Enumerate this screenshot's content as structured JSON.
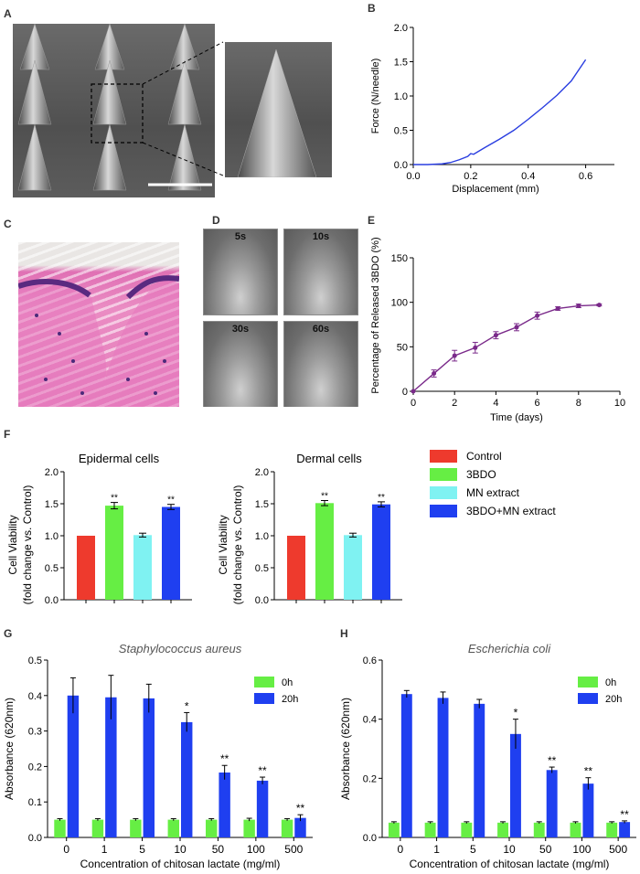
{
  "panels": {
    "A": "A",
    "B": "B",
    "C": "C",
    "D": "D",
    "E": "E",
    "F": "F",
    "G": "G",
    "H": "H"
  },
  "panel_D_labels": [
    "5s",
    "10s",
    "30s",
    "60s"
  ],
  "colors": {
    "control": "#ee3a2d",
    "bdo": "#66ee44",
    "mn": "#7ff2f2",
    "bdo_mn": "#1f3ff0",
    "line_b": "#2a3ee0",
    "line_e": "#7a2a8a",
    "h0": "#66ee44",
    "h20": "#1f3ff0"
  },
  "chart_data": [
    {
      "id": "B",
      "type": "line",
      "xlabel": "Displacement (mm)",
      "ylabel": "Force (N/needle)",
      "xlim": [
        0,
        0.7
      ],
      "ylim": [
        0,
        2.0
      ],
      "xticks": [
        "0.0",
        "0.2",
        "0.4",
        "0.6"
      ],
      "yticks": [
        "0.0",
        "0.5",
        "1.0",
        "1.5",
        "2.0"
      ],
      "series": [
        {
          "x": [
            0,
            0.05,
            0.1,
            0.13,
            0.16,
            0.19,
            0.2,
            0.21,
            0.25,
            0.3,
            0.35,
            0.4,
            0.45,
            0.5,
            0.55,
            0.6
          ],
          "y": [
            0,
            0.0,
            0.01,
            0.03,
            0.07,
            0.12,
            0.16,
            0.15,
            0.25,
            0.37,
            0.5,
            0.66,
            0.83,
            1.01,
            1.22,
            1.53
          ]
        }
      ]
    },
    {
      "id": "E",
      "type": "line",
      "xlabel": "Time (days)",
      "ylabel": "Percentage of Released 3BDO (%)",
      "xlim": [
        0,
        10
      ],
      "ylim": [
        0,
        150
      ],
      "xticks": [
        "0",
        "2",
        "4",
        "6",
        "8",
        "10"
      ],
      "yticks": [
        "0",
        "50",
        "100",
        "150"
      ],
      "series": [
        {
          "x": [
            0,
            1,
            2,
            3,
            4,
            5,
            6,
            7,
            8,
            9
          ],
          "y": [
            0,
            20,
            40,
            49,
            63,
            72,
            85,
            93,
            96,
            97
          ],
          "err": [
            0,
            4,
            6,
            6,
            4,
            4,
            4,
            2,
            2,
            1
          ]
        }
      ]
    },
    {
      "id": "F1",
      "type": "bar",
      "title": "Epidermal cells",
      "ylabel": "Cell Viability",
      "ylabel2": "(fold change vs. Control)",
      "ylim": [
        0,
        2.0
      ],
      "yticks": [
        "0.0",
        "0.5",
        "1.0",
        "1.5",
        "2.0"
      ],
      "categories": [
        "Control",
        "3BDO",
        "MN extract",
        "3BDO+MN extract"
      ],
      "values": [
        1.0,
        1.47,
        1.01,
        1.45
      ],
      "err": [
        0,
        0.05,
        0.03,
        0.04
      ],
      "sig": [
        "",
        "**",
        "",
        "**"
      ]
    },
    {
      "id": "F2",
      "type": "bar",
      "title": "Dermal cells",
      "ylabel": "Cell Viability",
      "ylabel2": "(fold change vs. Control)",
      "ylim": [
        0,
        2.0
      ],
      "yticks": [
        "0.0",
        "0.5",
        "1.0",
        "1.5",
        "2.0"
      ],
      "categories": [
        "Control",
        "3BDO",
        "MN extract",
        "3BDO+MN extract"
      ],
      "values": [
        1.0,
        1.51,
        1.01,
        1.49
      ],
      "err": [
        0,
        0.04,
        0.03,
        0.04
      ],
      "sig": [
        "",
        "**",
        "",
        "**"
      ]
    },
    {
      "id": "G",
      "type": "bar",
      "title": "Staphylococcus aureus",
      "xlabel": "Concentration of chitosan lactate (mg/ml)",
      "ylabel": "Absorbance (620nm)",
      "ylim": [
        0,
        0.5
      ],
      "yticks": [
        "0.0",
        "0.1",
        "0.2",
        "0.3",
        "0.4",
        "0.5"
      ],
      "categories": [
        "0",
        "1",
        "5",
        "10",
        "50",
        "100",
        "500"
      ],
      "series": [
        {
          "name": "0h",
          "values": [
            0.05,
            0.05,
            0.05,
            0.05,
            0.05,
            0.05,
            0.05
          ],
          "err": [
            0.003,
            0.003,
            0.003,
            0.003,
            0.003,
            0.004,
            0.003
          ]
        },
        {
          "name": "20h",
          "values": [
            0.4,
            0.395,
            0.392,
            0.325,
            0.183,
            0.16,
            0.055
          ],
          "err": [
            0.05,
            0.062,
            0.04,
            0.027,
            0.02,
            0.01,
            0.009
          ]
        }
      ],
      "sig": [
        "",
        "",
        "",
        "*",
        "**",
        "**",
        "**"
      ]
    },
    {
      "id": "H",
      "type": "bar",
      "title": "Escherichia coli",
      "xlabel": "Concentration of chitosan lactate (mg/ml)",
      "ylabel": "Absorbance (620nm)",
      "ylim": [
        0,
        0.6
      ],
      "yticks": [
        "0.0",
        "0.2",
        "0.4",
        "0.6"
      ],
      "categories": [
        "0",
        "1",
        "5",
        "10",
        "50",
        "100",
        "500"
      ],
      "series": [
        {
          "name": "0h",
          "values": [
            0.05,
            0.05,
            0.05,
            0.05,
            0.05,
            0.05,
            0.05
          ],
          "err": [
            0.003,
            0.003,
            0.003,
            0.003,
            0.003,
            0.003,
            0.003
          ]
        },
        {
          "name": "20h",
          "values": [
            0.485,
            0.472,
            0.452,
            0.35,
            0.228,
            0.182,
            0.052
          ],
          "err": [
            0.012,
            0.02,
            0.015,
            0.05,
            0.01,
            0.02,
            0.004
          ]
        }
      ],
      "sig": [
        "",
        "",
        "",
        "*",
        "**",
        "**",
        "**"
      ]
    }
  ]
}
